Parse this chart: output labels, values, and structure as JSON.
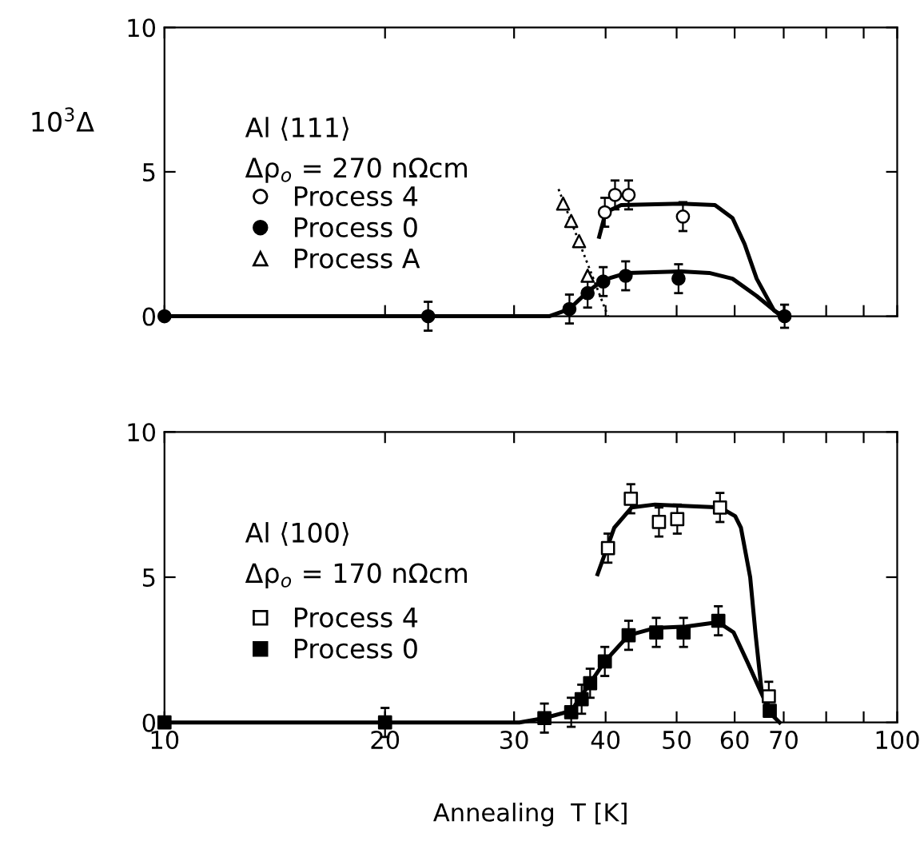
{
  "chart_data": [
    {
      "type": "scatter",
      "ylabel": "10$^{3}$Δ",
      "annotations": [
        "Al ⟨111⟩",
        "Δρ$_{o}$ = 270 nΩcm"
      ],
      "log": "x",
      "xlim": [
        10,
        100
      ],
      "ylim": [
        0,
        10
      ],
      "yticks": [
        0,
        5,
        10
      ],
      "xticks": [
        {
          "value": 10,
          "label": null
        },
        {
          "value": 20,
          "label": null
        },
        {
          "value": 30,
          "label": null
        },
        {
          "value": 40,
          "label": null
        },
        {
          "value": 50,
          "label": null
        },
        {
          "value": 60,
          "label": null
        },
        {
          "value": 70,
          "label": null
        },
        {
          "value": 80,
          "label": null
        },
        {
          "value": 90,
          "label": null
        },
        {
          "value": 100,
          "label": null
        }
      ],
      "tick_labels": "y",
      "grid": false,
      "legend": "left",
      "series": [
        {
          "name": "Process 4",
          "color": "#ffffff",
          "marker": "circle",
          "x": [
            39.9,
            41.2,
            43.0,
            51.0
          ],
          "values": [
            3.6,
            4.2,
            4.2,
            3.45
          ],
          "errors": [
            0.5,
            0.5,
            0.5,
            0.5
          ]
        },
        {
          "name": "Process 0",
          "color": "#000000",
          "marker": "circle",
          "x": [
            10,
            22.9,
            35.7,
            37.8,
            39.7,
            42.6,
            50.3,
            70.2
          ],
          "values": [
            0,
            0,
            0.25,
            0.8,
            1.2,
            1.4,
            1.3,
            0
          ],
          "errors": [
            null,
            0.5,
            0.5,
            0.5,
            0.5,
            0.5,
            0.5,
            0.4
          ]
        },
        {
          "name": "Process A",
          "color": "#ffffff",
          "marker": "triangle",
          "x": [
            35.0,
            35.9,
            36.8,
            37.8
          ],
          "values": [
            3.9,
            3.3,
            2.6,
            1.4
          ]
        },
        {
          "type": "line",
          "color": "#000000",
          "line_style": "solid",
          "x": [
            39.2,
            40.0,
            42.0,
            50.7,
            56.4,
            59.6,
            61.9,
            64.3,
            67.9,
            70.0
          ],
          "values": [
            2.75,
            3.6,
            3.85,
            3.9,
            3.85,
            3.4,
            2.5,
            1.3,
            0.2,
            0
          ]
        },
        {
          "type": "line",
          "color": "#000000",
          "line_style": "solid",
          "x": [
            10,
            33.5,
            35.7,
            37.8,
            39.7,
            42.8,
            50.7,
            55.4,
            59.6,
            64.3,
            69.1
          ],
          "values": [
            0,
            0,
            0.25,
            0.85,
            1.25,
            1.5,
            1.55,
            1.5,
            1.3,
            0.7,
            0.05
          ]
        },
        {
          "type": "line",
          "color": "#000000",
          "line_style": "dotted",
          "x": [
            34.5,
            40.3
          ],
          "values": [
            4.4,
            0
          ]
        }
      ]
    },
    {
      "type": "scatter",
      "xlabel": "Annealing  T [K]",
      "annotations": [
        "Al ⟨100⟩",
        "Δρ$_{o}$ = 170 nΩcm"
      ],
      "log": "x",
      "xlim": [
        10,
        100
      ],
      "ylim": [
        0,
        10
      ],
      "yticks": [
        0,
        5,
        10
      ],
      "xticks": [
        10,
        20,
        30,
        40,
        50,
        60,
        70,
        {
          "value": 80,
          "label": null
        },
        {
          "value": 90,
          "label": null
        },
        100
      ],
      "grid": false,
      "legend": "left",
      "series": [
        {
          "name": "Process 4",
          "color": "#ffffff",
          "marker": "square",
          "x": [
            40.3,
            43.3,
            47.3,
            50.1,
            57.3,
            66.8
          ],
          "values": [
            6.0,
            7.7,
            6.9,
            7.0,
            7.4,
            0.9
          ],
          "errors": [
            0.5,
            0.5,
            0.5,
            0.5,
            0.5,
            0.5
          ]
        },
        {
          "name": "Process 0",
          "color": "#000000",
          "marker": "square",
          "x": [
            10,
            20.0,
            33.0,
            35.9,
            37.1,
            38.1,
            39.9,
            43.0,
            46.9,
            51.1,
            57.0,
            67.0
          ],
          "values": [
            0,
            0,
            0.15,
            0.35,
            0.8,
            1.35,
            2.1,
            3.0,
            3.1,
            3.1,
            3.5,
            0.4
          ],
          "errors": [
            null,
            0.5,
            0.5,
            0.5,
            0.5,
            0.5,
            0.5,
            0.5,
            0.5,
            0.5,
            0.5,
            null
          ]
        },
        {
          "type": "line",
          "color": "#000000",
          "line_style": "solid",
          "x": [
            39.0,
            41.1,
            43.4,
            46.7,
            57.3,
            60.1,
            61.2,
            63.0,
            64.1,
            65.3
          ],
          "values": [
            5.1,
            6.7,
            7.4,
            7.5,
            7.4,
            7.1,
            6.7,
            5.0,
            3.0,
            1.1
          ]
        },
        {
          "type": "line",
          "color": "#000000",
          "line_style": "solid",
          "x": [
            10,
            30.5,
            33.0,
            35.9,
            39.9,
            43.0,
            46.7,
            51.5,
            57.0,
            59.8,
            62.4,
            65.3,
            67.2,
            69.1
          ],
          "values": [
            0,
            0,
            0.15,
            0.4,
            2.1,
            3.0,
            3.25,
            3.3,
            3.45,
            3.1,
            2.1,
            1.0,
            0.3,
            0
          ]
        }
      ]
    }
  ]
}
